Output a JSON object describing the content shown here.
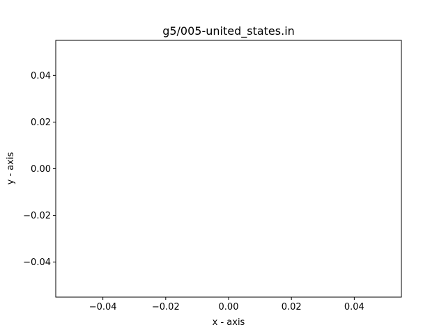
{
  "chart_data": {
    "type": "line",
    "title": "g5/005-united_states.in",
    "xlabel": "x - axis",
    "ylabel": "y - axis",
    "xlim": [
      -0.055,
      0.055
    ],
    "ylim": [
      -0.055,
      0.055
    ],
    "xticks": [
      -0.04,
      -0.02,
      0.0,
      0.02,
      0.04
    ],
    "yticks": [
      -0.04,
      -0.02,
      0.0,
      0.02,
      0.04
    ],
    "xtick_labels": [
      "−0.04",
      "−0.02",
      "0.00",
      "0.02",
      "0.04"
    ],
    "ytick_labels": [
      "−0.04",
      "−0.02",
      "0.00",
      "0.02",
      "0.04"
    ],
    "series": [],
    "grid": false,
    "legend": "none"
  }
}
